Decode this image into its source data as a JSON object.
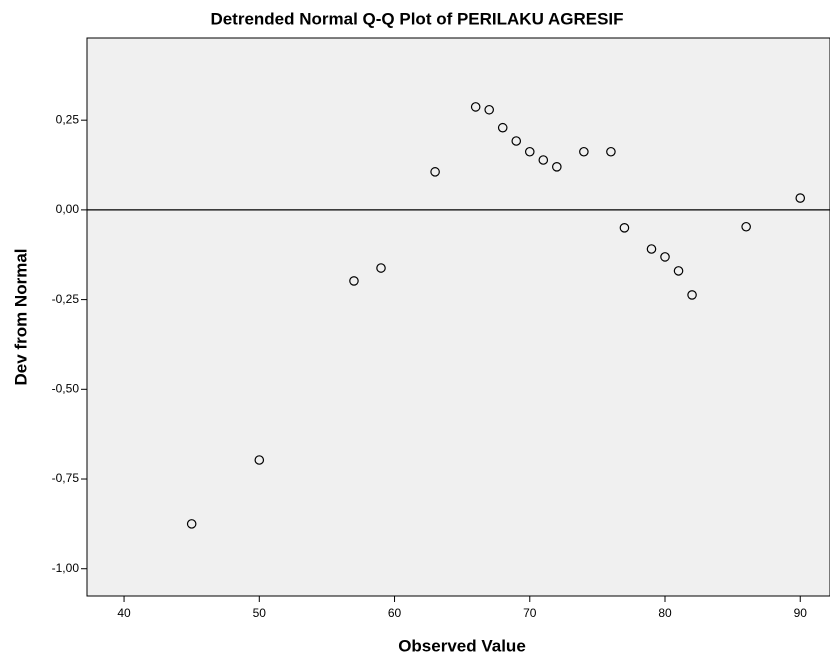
{
  "chart_data": {
    "type": "scatter",
    "title": "Detrended Normal Q-Q Plot of PERILAKU AGRESIF",
    "x_label": "Observed Value",
    "y_label": "Dev from Normal",
    "x": [
      45,
      50,
      57,
      59,
      63,
      66,
      67,
      68,
      69,
      70,
      71,
      72,
      74,
      76,
      77,
      79,
      80,
      81,
      82,
      86,
      90
    ],
    "values": [
      -0.875,
      -0.697,
      -0.198,
      -0.162,
      0.106,
      0.287,
      0.279,
      0.229,
      0.192,
      0.162,
      0.139,
      0.12,
      0.162,
      0.162,
      -0.05,
      -0.109,
      -0.131,
      -0.17,
      -0.237,
      -0.047,
      0.033
    ],
    "xlim": [
      37.26,
      92.2
    ],
    "ylim": [
      -1.076,
      0.479
    ],
    "xticks": [
      40,
      50,
      60,
      70,
      80,
      90
    ],
    "yticks": [
      {
        "value": 0.25,
        "label": "0,25"
      },
      {
        "value": 0,
        "label": "0,00"
      },
      {
        "value": -0.25,
        "label": "-0,25"
      },
      {
        "value": -0.5,
        "label": "-0,50"
      },
      {
        "value": -0.75,
        "label": "-0,75"
      },
      {
        "value": -1,
        "label": "-1,00"
      }
    ],
    "marker_color": "#000000",
    "plot_background": "#f0f0f0"
  }
}
